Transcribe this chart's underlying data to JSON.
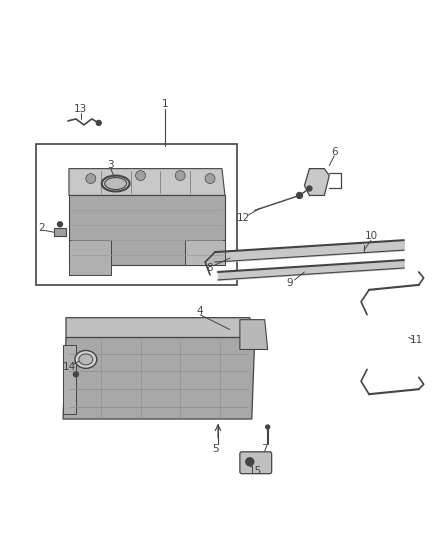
{
  "background_color": "#ffffff",
  "figure_width": 4.38,
  "figure_height": 5.33,
  "dpi": 100,
  "line_color": "#444444",
  "label_fontsize": 7.5,
  "gray_light": "#d0d0d0",
  "gray_mid": "#a0a0a0",
  "gray_dark": "#707070"
}
